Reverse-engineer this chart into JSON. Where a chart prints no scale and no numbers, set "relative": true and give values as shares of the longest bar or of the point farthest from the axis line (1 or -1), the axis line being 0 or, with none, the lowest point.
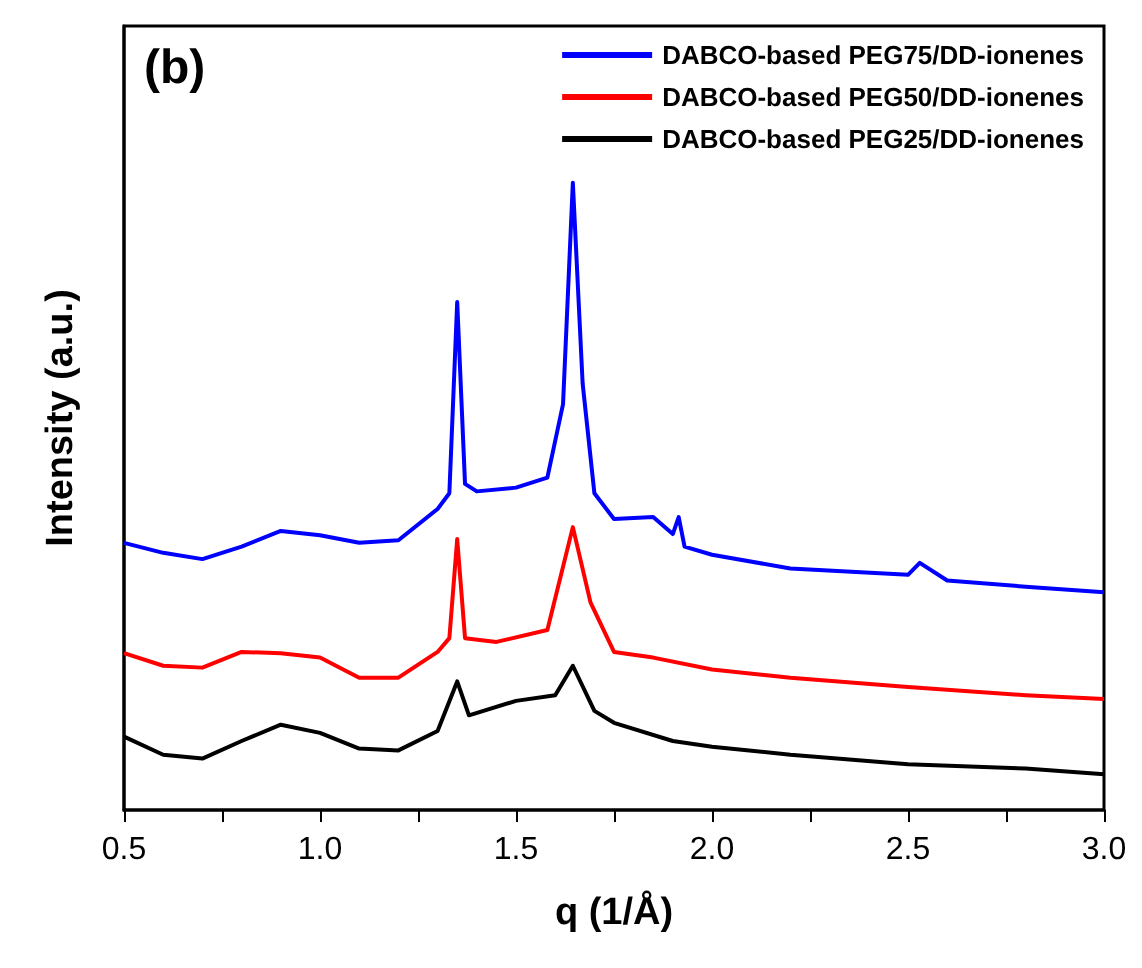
{
  "chart_data": {
    "type": "line",
    "relative": true,
    "xlabel": "q (1/Å)",
    "ylabel": "Intensity (a.u.)",
    "annotations": [
      "(b)"
    ],
    "xlim": [
      0.5,
      3.0
    ],
    "xticks": [
      {
        "value": 0.5,
        "label": "0.5"
      },
      {
        "value": 0.75,
        "label": null
      },
      {
        "value": 1,
        "label": "1.0"
      },
      {
        "value": 1.25,
        "label": null
      },
      {
        "value": 1.5,
        "label": "1.5"
      },
      {
        "value": 1.75,
        "label": null
      },
      {
        "value": 2,
        "label": "2.0"
      },
      {
        "value": 2.25,
        "label": null
      },
      {
        "value": 2.5,
        "label": "2.5"
      },
      {
        "value": 2.75,
        "label": null
      },
      {
        "value": 3,
        "label": "3.0"
      }
    ],
    "legend": "top right",
    "marker": "none",
    "line_style": "solid",
    "grid": false,
    "series": [
      {
        "name": "DABCO-based PEG75/DD-ionenes",
        "color": "#0000ff",
        "x": [
          0.5,
          0.6,
          0.7,
          0.8,
          0.9,
          1.0,
          1.1,
          1.2,
          1.3,
          1.33,
          1.35,
          1.37,
          1.4,
          1.5,
          1.58,
          1.62,
          1.645,
          1.67,
          1.7,
          1.75,
          1.85,
          1.9,
          1.915,
          1.93,
          2.0,
          2.2,
          2.5,
          2.53,
          2.6,
          2.8,
          3.0
        ],
        "values": [
          0.426,
          0.41,
          0.4,
          0.42,
          0.445,
          0.438,
          0.426,
          0.43,
          0.48,
          0.505,
          0.81,
          0.52,
          0.508,
          0.514,
          0.53,
          0.647,
          1.0,
          0.68,
          0.505,
          0.464,
          0.467,
          0.44,
          0.467,
          0.42,
          0.407,
          0.385,
          0.375,
          0.394,
          0.366,
          0.356,
          0.347
        ]
      },
      {
        "name": "DABCO-based PEG50/DD-ionenes",
        "color": "#ff0000",
        "x": [
          0.5,
          0.6,
          0.7,
          0.8,
          0.9,
          1.0,
          1.1,
          1.2,
          1.3,
          1.33,
          1.35,
          1.37,
          1.45,
          1.58,
          1.645,
          1.69,
          1.75,
          1.85,
          2.0,
          2.2,
          2.5,
          2.8,
          3.0
        ],
        "values": [
          0.25,
          0.23,
          0.227,
          0.252,
          0.25,
          0.243,
          0.211,
          0.211,
          0.252,
          0.274,
          0.432,
          0.274,
          0.268,
          0.287,
          0.451,
          0.331,
          0.252,
          0.243,
          0.224,
          0.211,
          0.196,
          0.183,
          0.177
        ]
      },
      {
        "name": "DABCO-based PEG25/DD-ionenes",
        "color": "#000000",
        "x": [
          0.5,
          0.6,
          0.7,
          0.8,
          0.9,
          1.0,
          1.1,
          1.2,
          1.3,
          1.35,
          1.38,
          1.5,
          1.6,
          1.645,
          1.7,
          1.75,
          1.9,
          2.0,
          2.2,
          2.5,
          2.8,
          3.0
        ],
        "values": [
          0.117,
          0.088,
          0.082,
          0.11,
          0.136,
          0.123,
          0.098,
          0.095,
          0.126,
          0.205,
          0.151,
          0.174,
          0.183,
          0.23,
          0.158,
          0.139,
          0.11,
          0.101,
          0.088,
          0.073,
          0.066,
          0.057
        ]
      }
    ]
  }
}
